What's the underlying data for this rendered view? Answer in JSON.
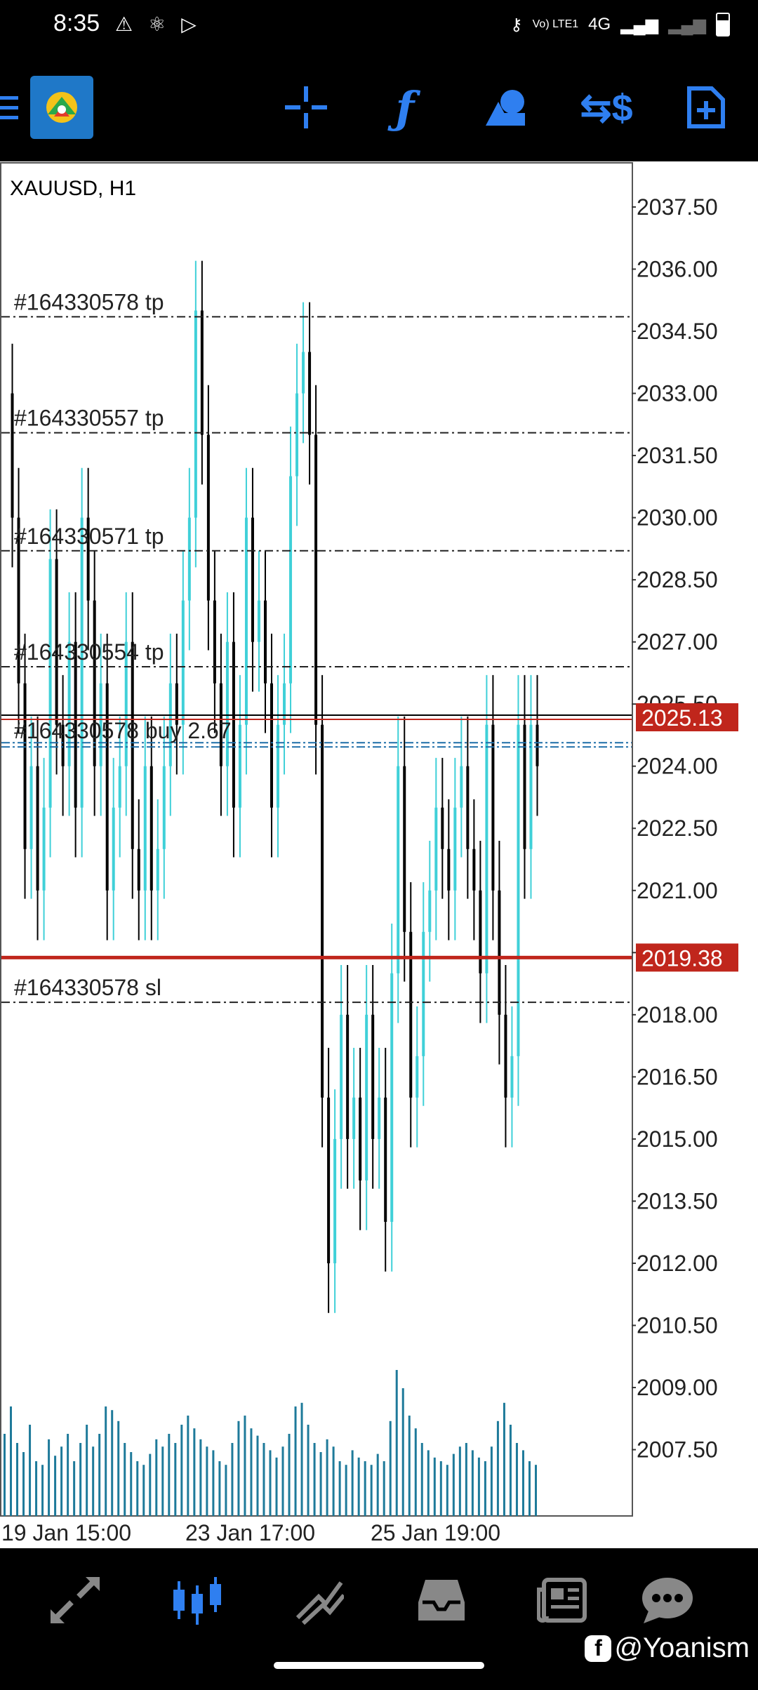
{
  "status_bar": {
    "time": "8:35",
    "left_icons": [
      "warning-icon",
      "atom-icon",
      "play-store-icon"
    ],
    "network_label": "4G",
    "volte_label": "Vo) LTE1",
    "right_icons": [
      "key-icon",
      "signal-icon",
      "signal-icon",
      "battery-icon"
    ]
  },
  "toolbar": {
    "icons": [
      "menu-icon",
      "metatrader-logo",
      "crosshair-icon",
      "indicators-icon",
      "objects-icon",
      "symbol-icon",
      "new-order-icon"
    ]
  },
  "chart": {
    "symbol_timeframe": "XAUUSD, H1",
    "price_levels": [
      "2037.50",
      "2036.00",
      "2034.50",
      "2033.00",
      "2031.50",
      "2030.00",
      "2028.50",
      "2027.00",
      "2025.50",
      "2024.00",
      "2022.50",
      "2021.00",
      "2019.50",
      "2018.00",
      "2016.50",
      "2015.00",
      "2013.50",
      "2012.00",
      "2010.50",
      "2009.00",
      "2007.50"
    ],
    "bid_label": "2025.13",
    "sl_price_label": "2019.38",
    "time_labels": [
      "19 Jan 15:00",
      "23 Jan 17:00",
      "25 Jan 19:00"
    ],
    "order_lines": [
      {
        "label": "#164330578 tp",
        "price": 2034.85
      },
      {
        "label": "#164330557 tp",
        "price": 2032.05
      },
      {
        "label": "#164330571 tp",
        "price": 2029.2
      },
      {
        "label": "#164330554 tp",
        "price": 2026.4
      },
      {
        "label": "#164330578 buy 2.67",
        "price": 2024.5
      },
      {
        "label": "#164330578 sl",
        "price": 2018.3
      }
    ],
    "colors": {
      "bull": "#3fd0d8",
      "bear": "#000000",
      "bid": "#c0261c",
      "entry": "#1e6ea8",
      "volume": "#1e7a9a"
    }
  },
  "chart_data": {
    "type": "candlestick",
    "title": "XAUUSD, H1",
    "ylim": [
      2005.9,
      2038.6
    ],
    "x_tick_labels": [
      "19 Jan 15:00",
      "23 Jan 17:00",
      "25 Jan 19:00"
    ],
    "series": [
      {
        "name": "price",
        "values": [
          2033,
          2030,
          2026,
          2022,
          2024,
          2021,
          2023,
          2029,
          2025,
          2024,
          2027,
          2023,
          2030,
          2028,
          2024,
          2026,
          2021,
          2023,
          2024,
          2027,
          2022,
          2021,
          2024,
          2021,
          2022,
          2024,
          2026,
          2025,
          2028,
          2030,
          2035,
          2032,
          2028,
          2026,
          2024,
          2027,
          2023,
          2025,
          2030,
          2027,
          2028,
          2026,
          2023,
          2025,
          2026,
          2031,
          2033,
          2034,
          2032,
          2025,
          2016,
          2012,
          2015,
          2018,
          2015,
          2016,
          2014,
          2018,
          2015,
          2016,
          2013,
          2019,
          2024,
          2020,
          2016,
          2017,
          2020,
          2021,
          2023,
          2022,
          2021,
          2023,
          2024,
          2022,
          2021,
          2019,
          2025,
          2021,
          2018,
          2016,
          2017,
          2025,
          2022,
          2025,
          2024
        ]
      },
      {
        "name": "volume",
        "values": [
          45,
          60,
          40,
          35,
          50,
          30,
          28,
          42,
          33,
          38,
          45,
          30,
          40,
          50,
          38,
          45,
          60,
          58,
          52,
          40,
          35,
          30,
          28,
          34,
          42,
          38,
          45,
          40,
          50,
          55,
          48,
          42,
          38,
          36,
          30,
          28,
          40,
          52,
          55,
          48,
          44,
          40,
          36,
          32,
          38,
          45,
          60,
          62,
          50,
          40,
          35,
          42,
          38,
          30,
          28,
          36,
          32,
          30,
          28,
          34,
          30,
          52,
          80,
          70,
          55,
          48,
          40,
          36,
          32,
          30,
          28,
          34,
          38,
          40,
          36,
          32,
          30,
          38,
          52,
          62,
          50,
          40,
          36,
          30,
          28
        ]
      }
    ]
  },
  "bottom_nav": {
    "icons": [
      "quotes-icon",
      "chart-icon",
      "trade-icon",
      "history-icon",
      "news-icon",
      "chat-icon"
    ]
  },
  "watermark": "@Yoanism"
}
